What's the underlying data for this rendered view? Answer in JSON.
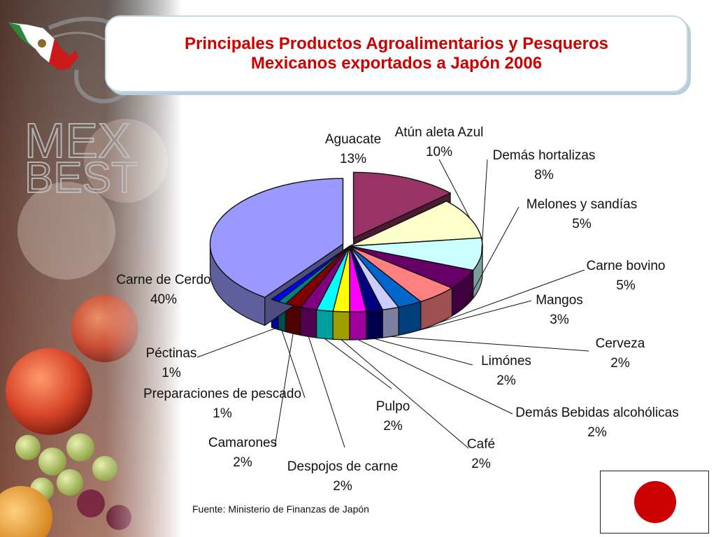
{
  "title": {
    "line1": "Principales Productos Agroalimentarios y Pesqueros",
    "line2": "Mexicanos exportados a Japón 2006"
  },
  "source": "Fuente: Ministerio de Finanzas de Japón",
  "brand_logo": "MEX BEST",
  "colors": {
    "title": "#cc0000",
    "flag_red": "#cc0000"
  },
  "chart_data": {
    "type": "pie",
    "title": "",
    "slices": [
      {
        "label": "Aguacate",
        "value": 13,
        "value_label": "13%",
        "color": "#993366"
      },
      {
        "label": "Atún aleta Azul",
        "value": 10,
        "value_label": "10%",
        "color": "#ffffcc"
      },
      {
        "label": "Demás hortalizas",
        "value": 8,
        "value_label": "8%",
        "color": "#ccffff"
      },
      {
        "label": "Melones y sandías",
        "value": 5,
        "value_label": "5%",
        "color": "#660066"
      },
      {
        "label": "Carne bovino",
        "value": 5,
        "value_label": "5%",
        "color": "#ff8080"
      },
      {
        "label": "Mangos",
        "value": 3,
        "value_label": "3%",
        "color": "#0066cc"
      },
      {
        "label": "Cerveza",
        "value": 2,
        "value_label": "2%",
        "color": "#ccccff"
      },
      {
        "label": "Limónes",
        "value": 2,
        "value_label": "2%",
        "color": "#000080"
      },
      {
        "label": "Demás Bebidas alcohólicas",
        "value": 2,
        "value_label": "2%",
        "color": "#ff00ff"
      },
      {
        "label": "Café",
        "value": 2,
        "value_label": "2%",
        "color": "#ffff00"
      },
      {
        "label": "Pulpo",
        "value": 2,
        "value_label": "2%",
        "color": "#00ffff"
      },
      {
        "label": "Despojos de carne",
        "value": 2,
        "value_label": "2%",
        "color": "#800080"
      },
      {
        "label": "Camarones",
        "value": 2,
        "value_label": "2%",
        "color": "#800000"
      },
      {
        "label": "Preparaciones de pescado",
        "value": 1,
        "value_label": "1%",
        "color": "#008080"
      },
      {
        "label": "Péctinas",
        "value": 1,
        "value_label": "1%",
        "color": "#0000ff"
      },
      {
        "label": "Carne de Cerdo",
        "value": 40,
        "value_label": "40%",
        "color": "#9999ff"
      }
    ]
  }
}
